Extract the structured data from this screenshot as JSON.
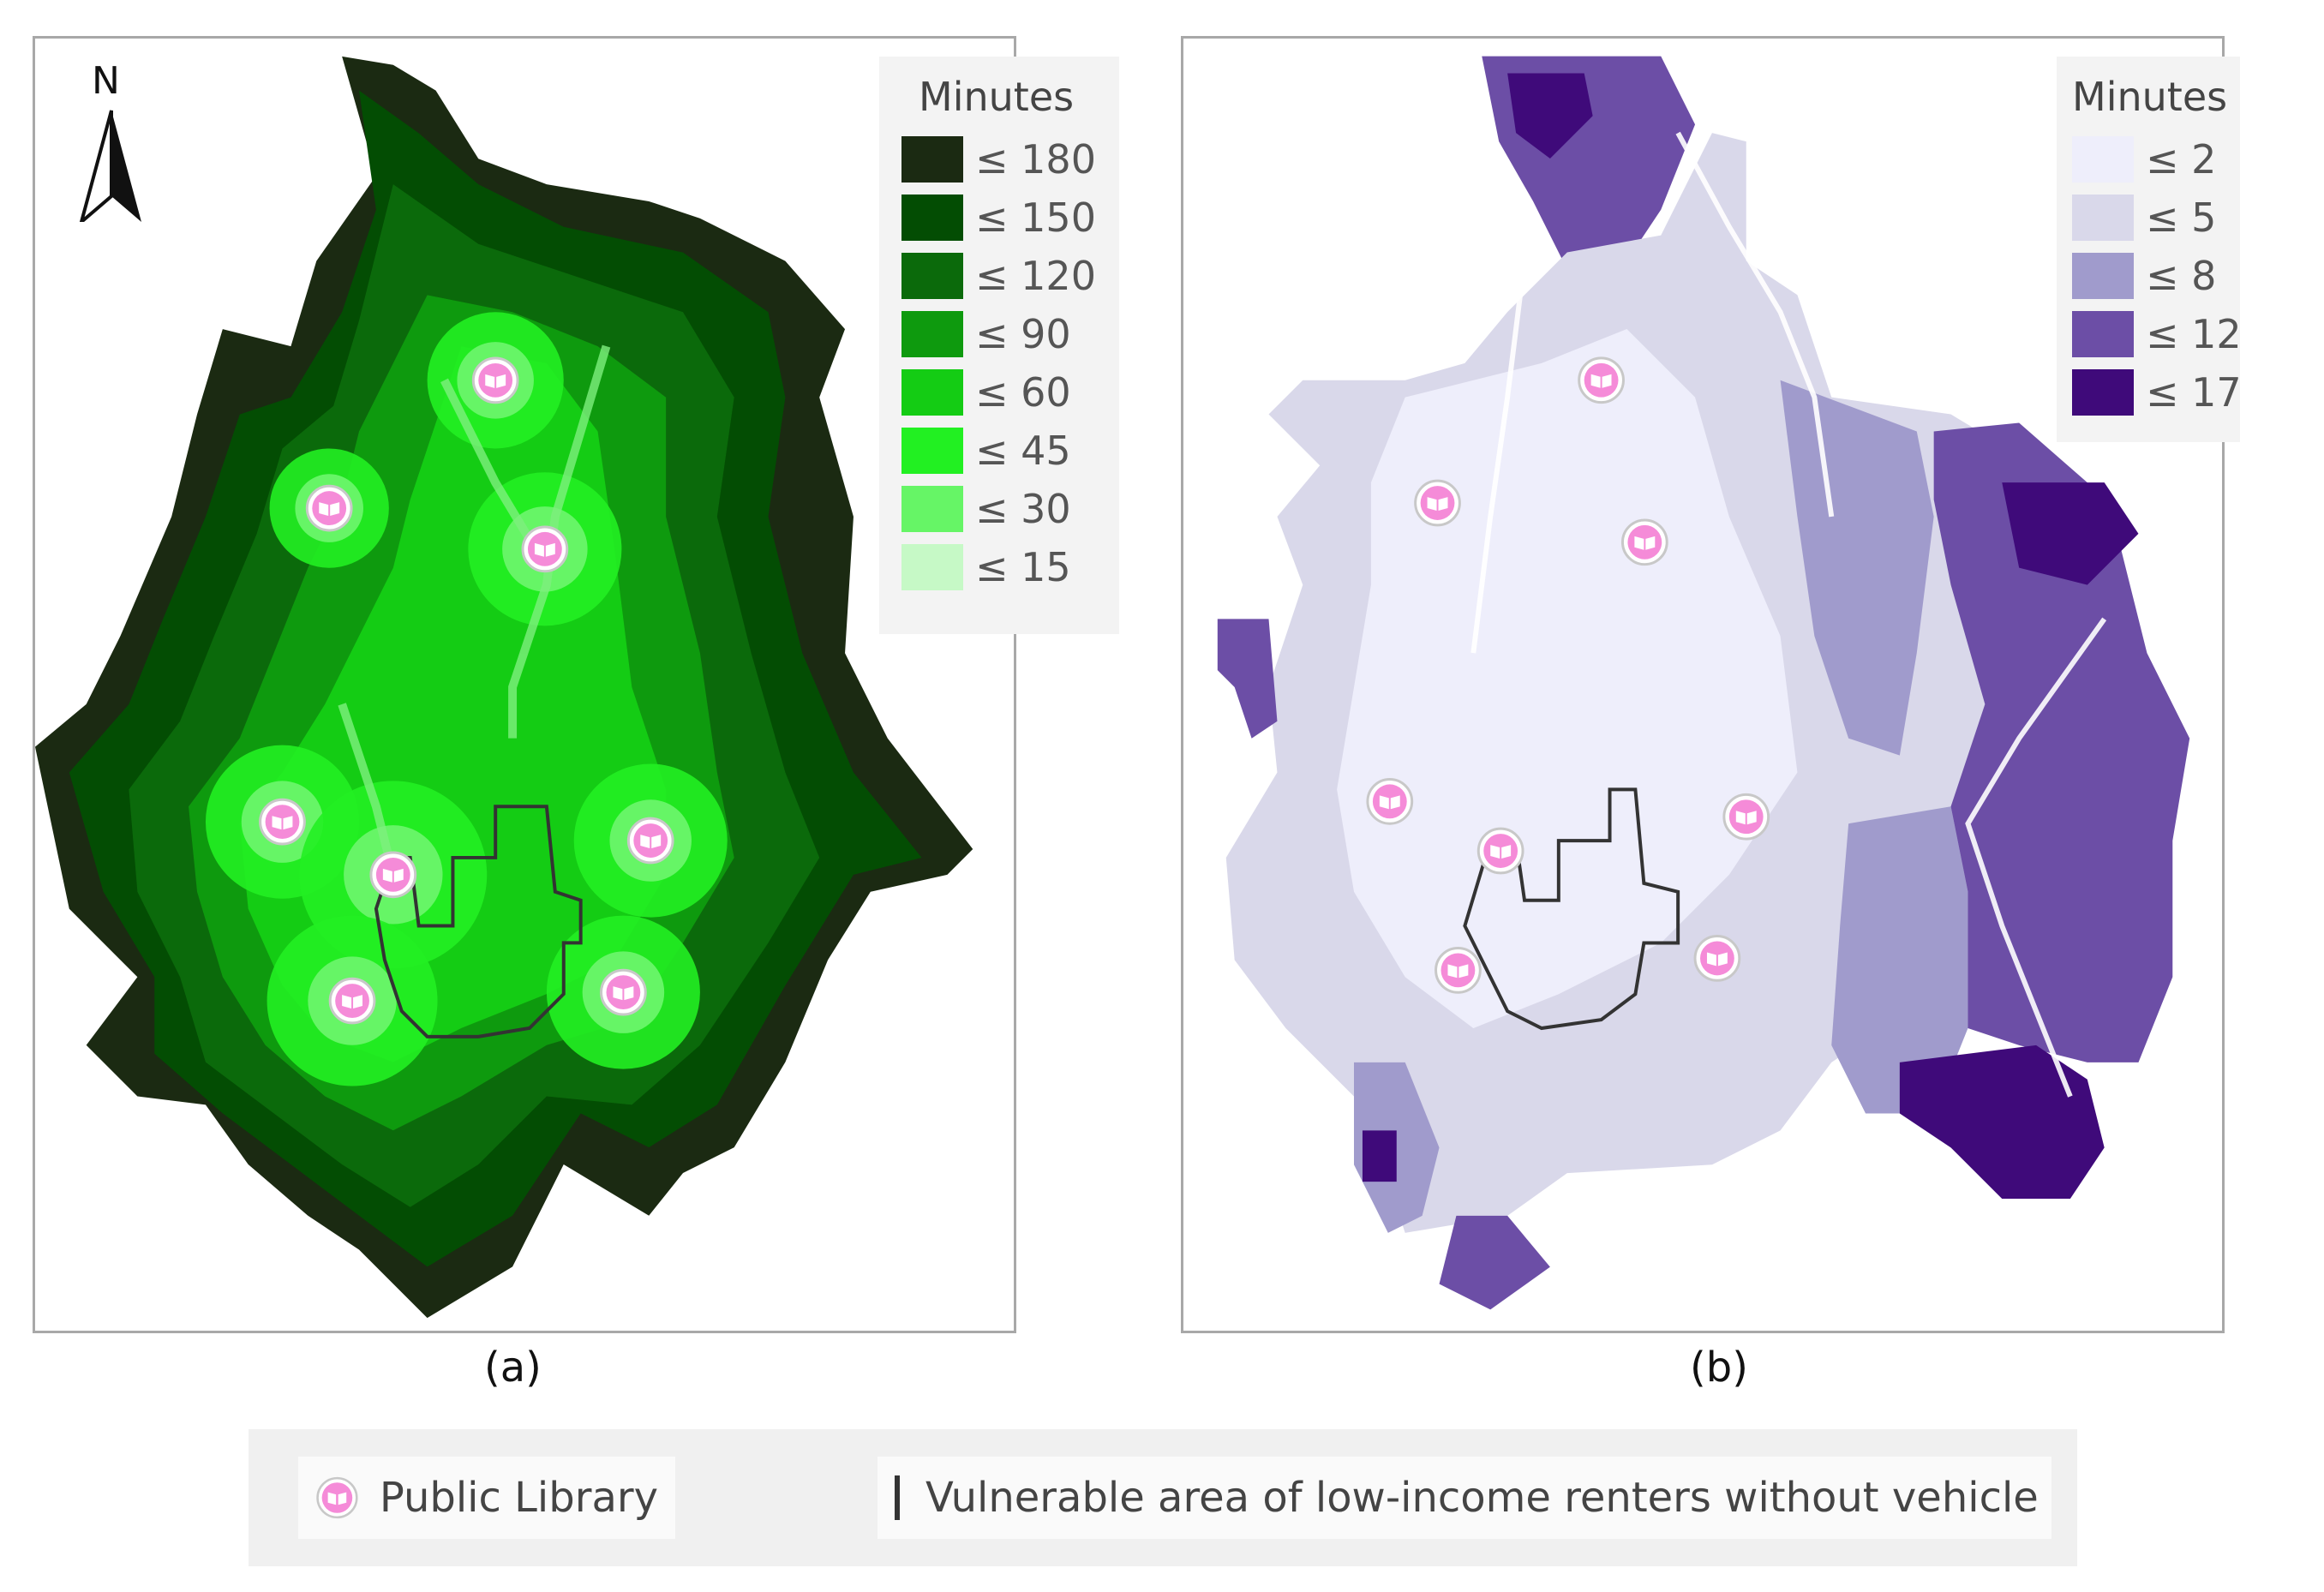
{
  "panel_a": {
    "caption": "(a)",
    "north_label": "N",
    "legend": {
      "title": "Minutes",
      "items": [
        {
          "label": "≤ 180",
          "color": "#1b2a12"
        },
        {
          "label": "≤ 150",
          "color": "#034d03"
        },
        {
          "label": "≤ 120",
          "color": "#0b6a0b"
        },
        {
          "label": "≤ 90",
          "color": "#0e9a0e"
        },
        {
          "label": "≤ 60",
          "color": "#14cc14"
        },
        {
          "label": "≤ 45",
          "color": "#22f022"
        },
        {
          "label": "≤ 30",
          "color": "#66f566"
        },
        {
          "label": "≤ 15",
          "color": "#c6f9c6"
        }
      ]
    }
  },
  "panel_b": {
    "caption": "(b)",
    "legend": {
      "title": "Minutes",
      "items": [
        {
          "label": "≤ 2",
          "color": "#eeeefb"
        },
        {
          "label": "≤ 5",
          "color": "#d9d8ea"
        },
        {
          "label": "≤ 8",
          "color": "#a09bcc"
        },
        {
          "label": "≤ 12",
          "color": "#6c4ea6"
        },
        {
          "label": "≤ 17",
          "color": "#3f0a7a"
        }
      ]
    }
  },
  "bottom_legend": {
    "library_label": "Public Library",
    "vulnerable_label": "Vulnerable area of low-income renters without vehicle"
  },
  "icons": {
    "library": "open-book-icon",
    "north_arrow": "north-arrow-icon"
  }
}
